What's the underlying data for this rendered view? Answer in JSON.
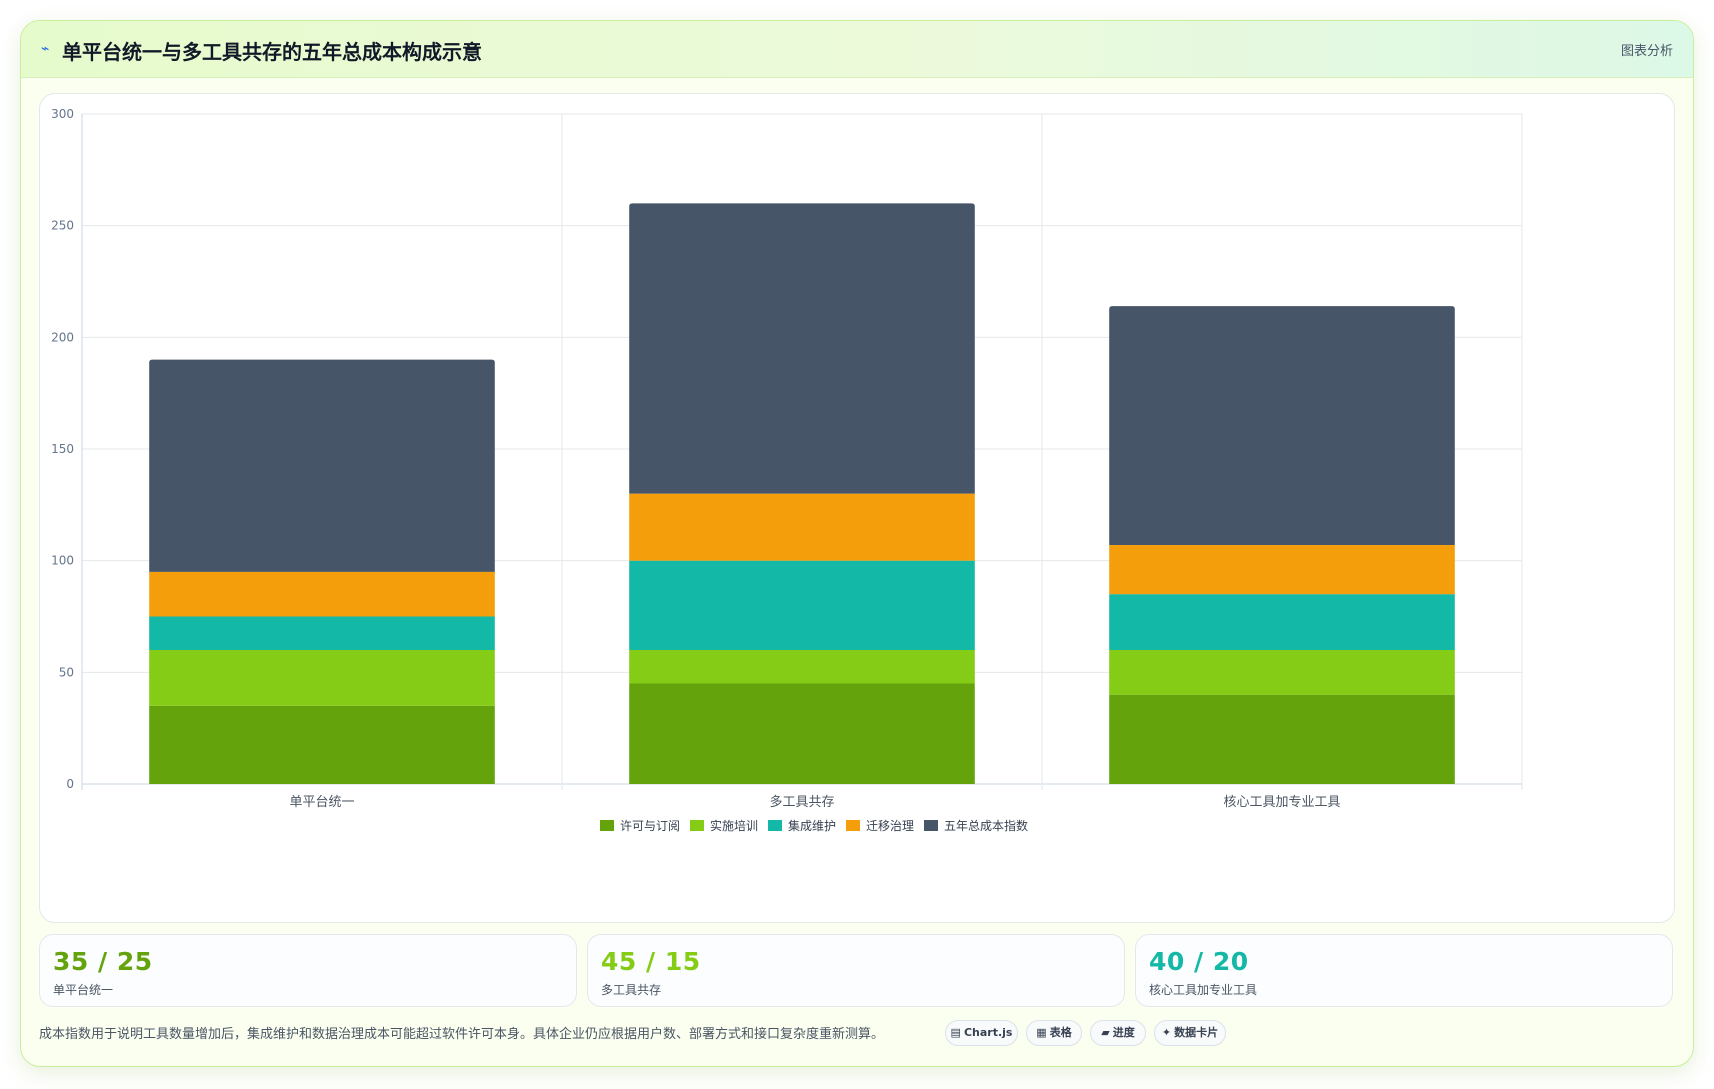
{
  "header": {
    "icon": "line-chart-icon",
    "title": "单平台统一与多工具共存的五年总成本构成示意",
    "tag": "图表分析"
  },
  "chart_data": {
    "type": "bar",
    "stacked": true,
    "categories": [
      "单平台统一",
      "多工具共存",
      "核心工具加专业工具"
    ],
    "series": [
      {
        "name": "许可与订阅",
        "color": "#65a30d",
        "values": [
          35,
          45,
          40
        ]
      },
      {
        "name": "实施培训",
        "color": "#84cc16",
        "values": [
          25,
          15,
          20
        ]
      },
      {
        "name": "集成维护",
        "color": "#14b8a6",
        "values": [
          15,
          40,
          25
        ]
      },
      {
        "name": "迁移治理",
        "color": "#f59e0b",
        "values": [
          20,
          30,
          22
        ]
      },
      {
        "name": "五年总成本指数",
        "color": "#475569",
        "values": [
          95,
          130,
          107
        ]
      }
    ],
    "ylim": [
      0,
      300
    ],
    "yticks": [
      0,
      50,
      100,
      150,
      200,
      250,
      300
    ],
    "grid": true,
    "legend": "bottom"
  },
  "stats": [
    {
      "value": "35 / 25",
      "label": "单平台统一",
      "color": "#65a30d"
    },
    {
      "value": "45 / 15",
      "label": "多工具共存",
      "color": "#84cc16"
    },
    {
      "value": "40 / 20",
      "label": "核心工具加专业工具",
      "color": "#14b8a6"
    }
  ],
  "footnote": "成本指数用于说明工具数量增加后，集成维护和数据治理成本可能超过软件许可本身。具体企业仍应根据用户数、部署方式和接口复杂度重新测算。",
  "chips": [
    {
      "icon": "▤",
      "icon_name": "chart-icon",
      "label": "Chart.js"
    },
    {
      "icon": "▦",
      "icon_name": "table-icon",
      "label": "表格"
    },
    {
      "icon": "▰",
      "icon_name": "progress-icon",
      "label": "进度"
    },
    {
      "icon": "✦",
      "icon_name": "sparkle-icon",
      "label": "数据卡片"
    }
  ]
}
